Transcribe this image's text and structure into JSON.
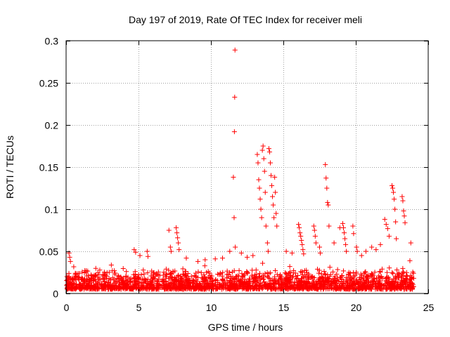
{
  "chart_data": {
    "type": "scatter",
    "title": "Day 197 of 2019, Rate Of TEC Index for receiver meli",
    "xlabel": "GPS time / hours",
    "ylabel": "ROTI / TECUs",
    "xlim": [
      0,
      25
    ],
    "ylim": [
      0,
      0.3
    ],
    "x_ticks": [
      0,
      5,
      10,
      15,
      20,
      25
    ],
    "x_tick_labels": [
      "0",
      "5",
      "10",
      "15",
      "20",
      "25"
    ],
    "y_ticks": [
      0,
      0.05,
      0.1,
      0.15,
      0.2,
      0.25,
      0.3
    ],
    "y_tick_labels": [
      "0",
      "0.05",
      "0.1",
      "0.15",
      "0.2",
      "0.25",
      "0.3"
    ],
    "grid": true,
    "marker": "+",
    "series": [
      {
        "name": "ROTI",
        "color": "#ff0000",
        "background_band": {
          "x_range": [
            0,
            24
          ],
          "y_range": [
            0.005,
            0.03
          ],
          "points": 2200
        },
        "x": [
          0.2,
          0.25,
          0.3,
          4.7,
          4.8,
          5.1,
          5.6,
          5.65,
          7.1,
          7.2,
          7.25,
          7.6,
          7.65,
          7.7,
          7.75,
          7.8,
          8.3,
          9.1,
          9.6,
          10.3,
          10.8,
          11.3,
          11.55,
          11.6,
          11.62,
          11.64,
          11.66,
          11.68,
          12.1,
          12.5,
          12.9,
          13.2,
          13.25,
          13.3,
          13.35,
          13.4,
          13.45,
          13.5,
          13.55,
          13.6,
          13.65,
          13.7,
          13.75,
          13.8,
          13.9,
          13.95,
          14.0,
          14.05,
          14.1,
          14.15,
          14.2,
          14.25,
          14.3,
          14.35,
          14.4,
          14.45,
          14.5,
          14.55,
          15.2,
          15.6,
          16.05,
          16.1,
          16.15,
          16.2,
          16.25,
          16.3,
          16.35,
          16.4,
          17.1,
          17.15,
          17.2,
          17.25,
          17.5,
          17.55,
          17.9,
          17.95,
          18.0,
          18.05,
          18.1,
          18.15,
          18.5,
          18.9,
          19.1,
          19.15,
          19.2,
          19.25,
          19.3,
          19.35,
          19.8,
          19.85,
          20.05,
          20.1,
          20.4,
          20.7,
          21.1,
          21.4,
          21.7,
          22.0,
          22.1,
          22.2,
          22.3,
          22.5,
          22.55,
          22.6,
          22.65,
          22.7,
          22.75,
          22.8,
          23.2,
          23.25,
          23.3,
          23.35,
          23.4,
          23.8
        ],
        "y": [
          0.048,
          0.043,
          0.038,
          0.052,
          0.049,
          0.045,
          0.05,
          0.044,
          0.075,
          0.055,
          0.05,
          0.078,
          0.072,
          0.066,
          0.06,
          0.052,
          0.042,
          0.038,
          0.04,
          0.041,
          0.042,
          0.05,
          0.138,
          0.09,
          0.192,
          0.233,
          0.289,
          0.055,
          0.048,
          0.043,
          0.045,
          0.165,
          0.155,
          0.135,
          0.125,
          0.112,
          0.1,
          0.09,
          0.17,
          0.175,
          0.16,
          0.145,
          0.12,
          0.08,
          0.06,
          0.05,
          0.172,
          0.168,
          0.155,
          0.14,
          0.128,
          0.115,
          0.105,
          0.09,
          0.138,
          0.12,
          0.095,
          0.08,
          0.05,
          0.048,
          0.082,
          0.078,
          0.072,
          0.068,
          0.063,
          0.058,
          0.052,
          0.047,
          0.08,
          0.075,
          0.068,
          0.06,
          0.055,
          0.048,
          0.153,
          0.137,
          0.125,
          0.108,
          0.105,
          0.08,
          0.06,
          0.078,
          0.083,
          0.078,
          0.072,
          0.065,
          0.058,
          0.05,
          0.08,
          0.071,
          0.055,
          0.05,
          0.045,
          0.05,
          0.055,
          0.052,
          0.058,
          0.088,
          0.082,
          0.077,
          0.068,
          0.128,
          0.125,
          0.12,
          0.112,
          0.1,
          0.085,
          0.065,
          0.115,
          0.11,
          0.098,
          0.092,
          0.084,
          0.06
        ]
      }
    ]
  }
}
